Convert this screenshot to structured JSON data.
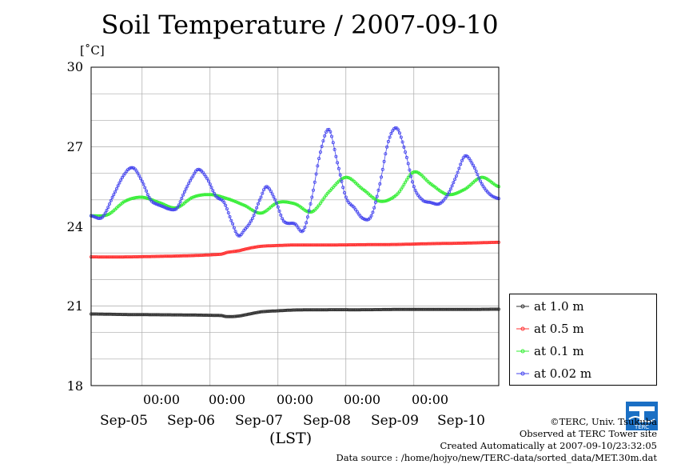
{
  "chart_data": {
    "type": "line",
    "title": "Soil Temperature / 2007-09-10",
    "ylabel": "[˚C]",
    "xlabel": "(LST)",
    "ylim": [
      18,
      30
    ],
    "yticks": [
      "30",
      "27",
      "24",
      "21",
      "18"
    ],
    "time_labels": [
      "00:00",
      "00:00",
      "00:00",
      "00:00",
      "00:00"
    ],
    "day_labels": [
      "Sep-05",
      "Sep-06",
      "Sep-07",
      "Sep-08",
      "Sep-09",
      "Sep-10"
    ],
    "x_unit": "hours since 2007-09-04 06:00",
    "xlim": [
      0,
      144
    ],
    "series": [
      {
        "name": "at 1.0 m",
        "color": "#333333",
        "points": [
          [
            0,
            20.7
          ],
          [
            12,
            20.68
          ],
          [
            24,
            20.67
          ],
          [
            36,
            20.66
          ],
          [
            46,
            20.64
          ],
          [
            48,
            20.6
          ],
          [
            52,
            20.62
          ],
          [
            56,
            20.7
          ],
          [
            60,
            20.78
          ],
          [
            66,
            20.82
          ],
          [
            72,
            20.85
          ],
          [
            84,
            20.86
          ],
          [
            96,
            20.86
          ],
          [
            108,
            20.87
          ],
          [
            120,
            20.87
          ],
          [
            132,
            20.87
          ],
          [
            144,
            20.88
          ]
        ]
      },
      {
        "name": "at 0.5 m",
        "color": "#ff3333",
        "points": [
          [
            0,
            22.85
          ],
          [
            12,
            22.85
          ],
          [
            24,
            22.87
          ],
          [
            36,
            22.9
          ],
          [
            46,
            22.95
          ],
          [
            48,
            23.02
          ],
          [
            52,
            23.08
          ],
          [
            56,
            23.18
          ],
          [
            60,
            23.25
          ],
          [
            66,
            23.28
          ],
          [
            72,
            23.3
          ],
          [
            84,
            23.3
          ],
          [
            96,
            23.31
          ],
          [
            108,
            23.32
          ],
          [
            120,
            23.35
          ],
          [
            132,
            23.37
          ],
          [
            144,
            23.4
          ]
        ]
      },
      {
        "name": "at 0.1 m",
        "color": "#33ee33",
        "points": [
          [
            0,
            24.4
          ],
          [
            6,
            24.45
          ],
          [
            12,
            24.95
          ],
          [
            18,
            25.1
          ],
          [
            24,
            24.9
          ],
          [
            30,
            24.7
          ],
          [
            36,
            25.1
          ],
          [
            42,
            25.2
          ],
          [
            48,
            25.05
          ],
          [
            54,
            24.8
          ],
          [
            60,
            24.5
          ],
          [
            66,
            24.9
          ],
          [
            72,
            24.85
          ],
          [
            78,
            24.55
          ],
          [
            84,
            25.3
          ],
          [
            90,
            25.85
          ],
          [
            96,
            25.4
          ],
          [
            102,
            24.95
          ],
          [
            108,
            25.2
          ],
          [
            114,
            26.05
          ],
          [
            120,
            25.6
          ],
          [
            126,
            25.2
          ],
          [
            132,
            25.4
          ],
          [
            138,
            25.85
          ],
          [
            144,
            25.5
          ]
        ]
      },
      {
        "name": "at 0.02 m",
        "color": "#4444ee",
        "points": [
          [
            0,
            24.4
          ],
          [
            4,
            24.35
          ],
          [
            8,
            25.2
          ],
          [
            12,
            26.0
          ],
          [
            15,
            26.2
          ],
          [
            18,
            25.7
          ],
          [
            21,
            25.0
          ],
          [
            24,
            24.8
          ],
          [
            30,
            24.65
          ],
          [
            33,
            25.3
          ],
          [
            36,
            25.9
          ],
          [
            38,
            26.15
          ],
          [
            41,
            25.8
          ],
          [
            44,
            25.15
          ],
          [
            47,
            24.9
          ],
          [
            50,
            24.1
          ],
          [
            52,
            23.65
          ],
          [
            54,
            23.85
          ],
          [
            57,
            24.3
          ],
          [
            60,
            25.1
          ],
          [
            62,
            25.5
          ],
          [
            65,
            25.0
          ],
          [
            68,
            24.2
          ],
          [
            72,
            24.1
          ],
          [
            75,
            23.85
          ],
          [
            78,
            25.1
          ],
          [
            81,
            26.8
          ],
          [
            84,
            27.65
          ],
          [
            87,
            26.4
          ],
          [
            90,
            25.1
          ],
          [
            93,
            24.7
          ],
          [
            96,
            24.3
          ],
          [
            99,
            24.4
          ],
          [
            102,
            25.6
          ],
          [
            105,
            27.2
          ],
          [
            108,
            27.7
          ],
          [
            111,
            26.8
          ],
          [
            114,
            25.5
          ],
          [
            117,
            25.0
          ],
          [
            120,
            24.9
          ],
          [
            123,
            24.85
          ],
          [
            126,
            25.2
          ],
          [
            129,
            25.9
          ],
          [
            132,
            26.65
          ],
          [
            135,
            26.3
          ],
          [
            138,
            25.6
          ],
          [
            141,
            25.2
          ],
          [
            144,
            25.05
          ]
        ]
      }
    ],
    "grid": true,
    "legend_position": "right"
  },
  "credits": {
    "copyright": "©TERC, Univ. Tsukuba",
    "observed": "Observed at TERC Tower site",
    "created": "Created Automatically at 2007-09-10/23:32:05",
    "source": "Data source : /home/hojyo/new/TERC-data/sorted_data/MET.30m.dat"
  },
  "logo": {
    "text": "TERC",
    "color": "#1a6fc4"
  }
}
